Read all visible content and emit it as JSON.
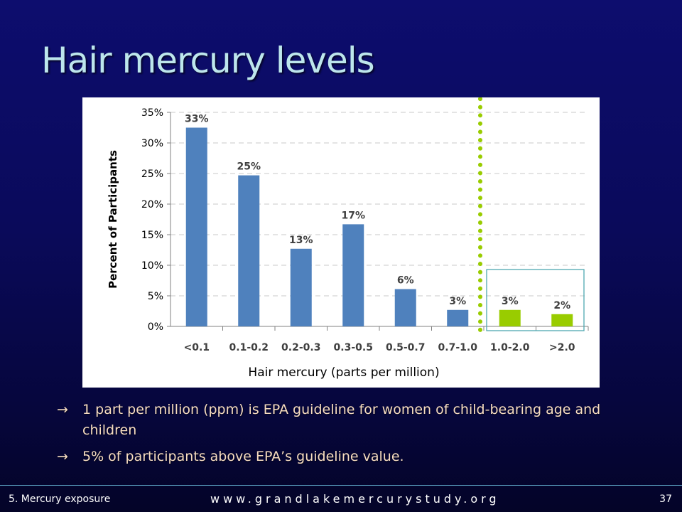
{
  "slide": {
    "title": "Hair mercury levels"
  },
  "chart_data": {
    "type": "bar",
    "ylabel": "Percent of Participants",
    "xlabel": "Hair mercury (parts per million)",
    "categories": [
      "<0.1",
      "0.1-0.2",
      "0.2-0.3",
      "0.3-0.5",
      "0.5-0.7",
      "0.7-1.0",
      "1.0-2.0",
      ">2.0"
    ],
    "values": [
      32.5,
      24.7,
      12.7,
      16.7,
      6.1,
      2.7,
      2.7,
      2.0
    ],
    "value_labels": [
      "33%",
      "25%",
      "13%",
      "17%",
      "6%",
      "3%",
      "3%",
      "2%"
    ],
    "y_ticks": [
      "0%",
      "5%",
      "10%",
      "15%",
      "20%",
      "25%",
      "30%",
      "35%"
    ],
    "ylim": [
      0,
      35
    ],
    "grid": true,
    "bar_colors": [
      "#4f81bd",
      "#4f81bd",
      "#4f81bd",
      "#4f81bd",
      "#4f81bd",
      "#4f81bd",
      "#99cc00",
      "#99cc00"
    ],
    "guideline_marker": {
      "style": "dotted",
      "color": "#99cc00",
      "between_categories": [
        "0.7-1.0",
        "1.0-2.0"
      ]
    },
    "highlight_box": {
      "categories": [
        "1.0-2.0",
        ">2.0"
      ],
      "color": "#4fa8b0"
    }
  },
  "bullets": [
    {
      "arrow": "→",
      "text": "1 part per million (ppm) is EPA guideline for women of child-bearing age and children"
    },
    {
      "arrow": "→",
      "text": "5% of participants above EPA’s guideline value."
    }
  ],
  "footer": {
    "section": "5.  Mercury exposure",
    "url": "www.grandlakemercurystudy.org",
    "page_number": "37"
  },
  "colors": {
    "background": "#0a0a5a",
    "title": "#bde6ec",
    "bullet_text": "#f6dcc0",
    "axis": "#000000"
  }
}
